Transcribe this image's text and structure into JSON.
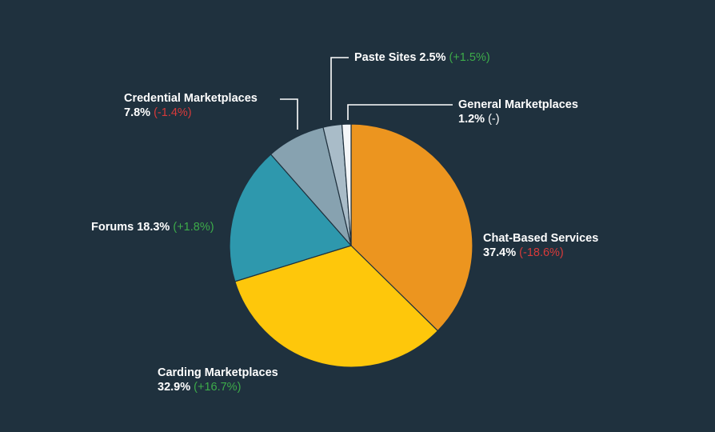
{
  "chart_data": {
    "type": "pie",
    "slices": [
      {
        "name": "Chat-Based Services",
        "value": 37.4,
        "pct_label": "37.4%",
        "change": "(-18.6%)",
        "trend": "down",
        "color": "#ec951f"
      },
      {
        "name": "Carding Marketplaces",
        "value": 32.9,
        "pct_label": "32.9%",
        "change": "(+16.7%)",
        "trend": "up",
        "color": "#fec70b"
      },
      {
        "name": "Forums",
        "value": 18.3,
        "pct_label": "18.3%",
        "change": "(+1.8%)",
        "trend": "up",
        "color": "#2e98ad"
      },
      {
        "name": "Credential Marketplaces",
        "value": 7.8,
        "pct_label": "7.8%",
        "change": "(-1.4%)",
        "trend": "down",
        "color": "#87a2b0"
      },
      {
        "name": "Paste Sites",
        "value": 2.5,
        "pct_label": "2.5%",
        "change": "(+1.5%)",
        "trend": "up",
        "color": "#a9bcc8"
      },
      {
        "name": "General Marketplaces",
        "value": 1.2,
        "pct_label": "1.2%",
        "change": "(-)",
        "trend": "flat",
        "color": "#f4f6f8"
      }
    ],
    "background": "#1f313e",
    "leader_line_color": "#ffffff",
    "colors": {
      "up": "#3dab4a",
      "down": "#d83a3a"
    }
  }
}
